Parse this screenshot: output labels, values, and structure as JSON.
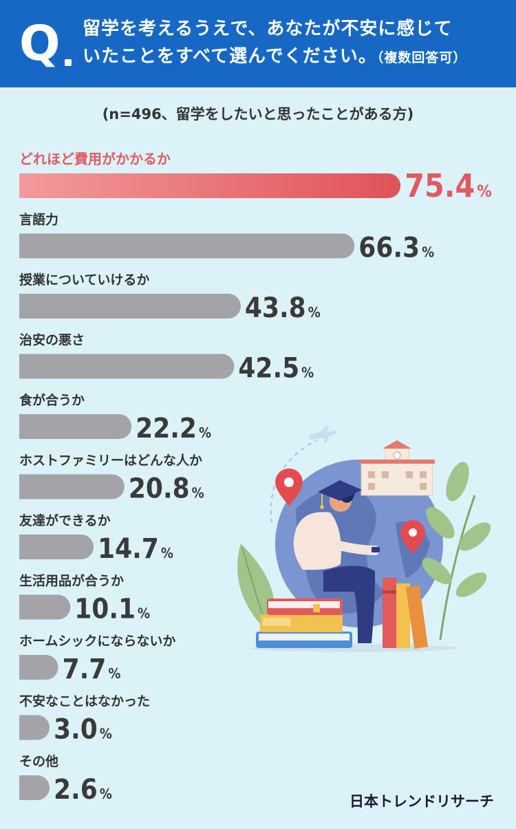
{
  "header": {
    "q_mark": "Q",
    "question_line1": "留学を考えるうえで、あなたが不安に感じて",
    "question_line2": "いたことをすべて選んでください。",
    "question_note": "（複数回答可）"
  },
  "sample_note": "(n=496、留学をしたいと思ったことがある方)",
  "brand": "日本トレンドリサーチ",
  "colors": {
    "header_bg": "#1668c4",
    "page_bg": "#dcf2f9",
    "highlight_start": "#f39a9c",
    "highlight_end": "#df5358",
    "bar_gray": "#a3a3a8"
  },
  "chart_data": {
    "type": "bar",
    "orientation": "horizontal",
    "unit": "%",
    "categories": [
      "どれほど費用がかかるか",
      "言語力",
      "授業についていけるか",
      "治安の悪さ",
      "食が合うか",
      "ホストファミリーはどんな人か",
      "友達ができるか",
      "生活用品が合うか",
      "ホームシックにならないか",
      "不安なことはなかった",
      "その他"
    ],
    "values": [
      75.4,
      66.3,
      43.8,
      42.5,
      22.2,
      20.8,
      14.7,
      10.1,
      7.7,
      3.0,
      2.6
    ],
    "value_labels": [
      "75.4",
      "66.3",
      "43.8",
      "42.5",
      "22.2",
      "20.8",
      "14.7",
      "10.1",
      "7.7",
      "3.0",
      "2.6"
    ],
    "highlight_index": 0
  }
}
